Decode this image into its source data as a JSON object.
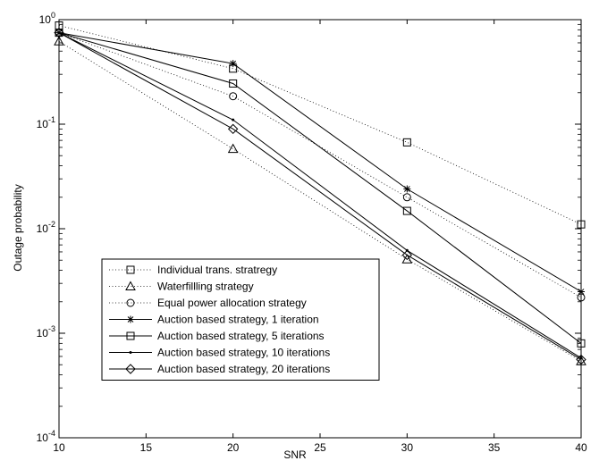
{
  "chart_data": {
    "type": "line",
    "title": "",
    "xlabel": "SNR",
    "ylabel": "Outage probability",
    "xlim": [
      10,
      40
    ],
    "ylim": [
      0.0001,
      1
    ],
    "yscale": "log",
    "grid": false,
    "legend_position": "bottom-left",
    "x_ticks": [
      10,
      15,
      20,
      25,
      30,
      35,
      40
    ],
    "y_ticks": [
      {
        "value": 0.0001,
        "base": "10",
        "exp": "-4"
      },
      {
        "value": 0.001,
        "base": "10",
        "exp": "-3"
      },
      {
        "value": 0.01,
        "base": "10",
        "exp": "-2"
      },
      {
        "value": 0.1,
        "base": "10",
        "exp": "-1"
      },
      {
        "value": 1,
        "base": "10",
        "exp": "0"
      }
    ],
    "x": [
      10,
      20,
      30,
      40
    ],
    "series": [
      {
        "name": "Individual trans. stratregy",
        "values": [
          0.88,
          0.34,
          0.067,
          0.011
        ],
        "line": "dotted",
        "marker": "square"
      },
      {
        "name": "Waterfillling strategy",
        "values": [
          0.62,
          0.058,
          0.0051,
          0.00054
        ],
        "line": "dotted",
        "marker": "triangle"
      },
      {
        "name": "Equal power allocation strategy",
        "values": [
          0.75,
          0.185,
          0.02,
          0.0022
        ],
        "line": "dotted",
        "marker": "circle"
      },
      {
        "name": "Auction based strategy, 1 iteration",
        "values": [
          0.75,
          0.38,
          0.024,
          0.0025
        ],
        "line": "solid",
        "marker": "star"
      },
      {
        "name": "Auction based strategy, 5 iterations",
        "values": [
          0.75,
          0.245,
          0.0148,
          0.0008
        ],
        "line": "solid",
        "marker": "square"
      },
      {
        "name": "Auction based strategy, 10 iterations",
        "values": [
          0.75,
          0.11,
          0.0062,
          0.00058
        ],
        "line": "solid",
        "marker": "dot"
      },
      {
        "name": "Auction based strategy, 20 iterations",
        "values": [
          0.75,
          0.09,
          0.0056,
          0.00056
        ],
        "line": "solid",
        "marker": "diamond"
      }
    ]
  }
}
